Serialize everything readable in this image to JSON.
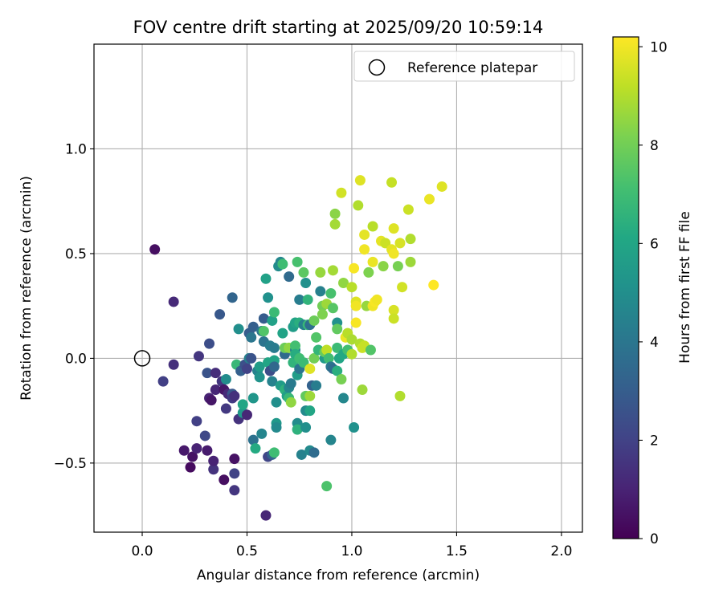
{
  "chart_data": {
    "type": "scatter",
    "title": "FOV centre drift starting at 2025/09/20 10:59:14",
    "xlabel": "Angular distance from reference (arcmin)",
    "ylabel": "Rotation from reference (arcmin)",
    "xlim": [
      -0.23,
      2.1
    ],
    "ylim": [
      -0.83,
      1.5
    ],
    "x_ticks": [
      0.0,
      0.5,
      1.0,
      1.5,
      2.0
    ],
    "x_tick_labels": [
      "0.0",
      "0.5",
      "1.0",
      "1.5",
      "2.0"
    ],
    "y_ticks": [
      -0.5,
      0.0,
      0.5,
      1.0
    ],
    "y_tick_labels": [
      "−0.5",
      "0.0",
      "0.5",
      "1.0"
    ],
    "grid": true,
    "legend": {
      "location": "upper-right",
      "entries": [
        "Reference platepar"
      ]
    },
    "reference_point": {
      "x": 0.0,
      "y": 0.0,
      "label": "Reference platepar"
    },
    "colorbar": {
      "label": "Hours from first FF file",
      "colormap": "viridis",
      "range": [
        0,
        10.2
      ],
      "ticks": [
        0,
        2,
        4,
        6,
        8,
        10
      ],
      "tick_labels": [
        "0",
        "2",
        "4",
        "6",
        "8",
        "10"
      ]
    },
    "points": [
      {
        "x": 0.06,
        "y": 0.52,
        "c": 0.4
      },
      {
        "x": 0.15,
        "y": 0.27,
        "c": 1.2
      },
      {
        "x": 0.15,
        "y": -0.03,
        "c": 1.4
      },
      {
        "x": 0.1,
        "y": -0.11,
        "c": 1.9
      },
      {
        "x": 0.2,
        "y": -0.44,
        "c": 0.7
      },
      {
        "x": 0.23,
        "y": -0.52,
        "c": 0.3
      },
      {
        "x": 0.24,
        "y": -0.47,
        "c": 0.5
      },
      {
        "x": 0.26,
        "y": -0.43,
        "c": 1.0
      },
      {
        "x": 0.26,
        "y": -0.3,
        "c": 1.9
      },
      {
        "x": 0.27,
        "y": 0.01,
        "c": 1.6
      },
      {
        "x": 0.3,
        "y": -0.37,
        "c": 2.2
      },
      {
        "x": 0.31,
        "y": -0.44,
        "c": 0.8
      },
      {
        "x": 0.31,
        "y": -0.07,
        "c": 2.6
      },
      {
        "x": 0.32,
        "y": 0.07,
        "c": 2.4
      },
      {
        "x": 0.32,
        "y": -0.19,
        "c": 1.0
      },
      {
        "x": 0.33,
        "y": -0.2,
        "c": 0.6
      },
      {
        "x": 0.35,
        "y": -0.07,
        "c": 1.3
      },
      {
        "x": 0.35,
        "y": -0.15,
        "c": 1.1
      },
      {
        "x": 0.34,
        "y": -0.53,
        "c": 1.5
      },
      {
        "x": 0.34,
        "y": -0.49,
        "c": 1.0
      },
      {
        "x": 0.37,
        "y": 0.21,
        "c": 2.8
      },
      {
        "x": 0.38,
        "y": -0.11,
        "c": 1.6
      },
      {
        "x": 0.39,
        "y": -0.15,
        "c": 0.6
      },
      {
        "x": 0.39,
        "y": -0.58,
        "c": 0.4
      },
      {
        "x": 0.4,
        "y": -0.24,
        "c": 1.7
      },
      {
        "x": 0.4,
        "y": -0.1,
        "c": 4.9
      },
      {
        "x": 0.41,
        "y": -0.17,
        "c": 1.2
      },
      {
        "x": 0.43,
        "y": -0.17,
        "c": 2.8
      },
      {
        "x": 0.43,
        "y": 0.29,
        "c": 3.3
      },
      {
        "x": 0.43,
        "y": -0.19,
        "c": 1.8
      },
      {
        "x": 0.44,
        "y": -0.48,
        "c": 0.5
      },
      {
        "x": 0.44,
        "y": -0.55,
        "c": 2.0
      },
      {
        "x": 0.44,
        "y": -0.63,
        "c": 1.6
      },
      {
        "x": 0.44,
        "y": -0.18,
        "c": 1.4
      },
      {
        "x": 0.45,
        "y": -0.03,
        "c": 6.8
      },
      {
        "x": 0.46,
        "y": -0.29,
        "c": 1.5
      },
      {
        "x": 0.46,
        "y": 0.14,
        "c": 5.0
      },
      {
        "x": 0.47,
        "y": -0.06,
        "c": 3.1
      },
      {
        "x": 0.48,
        "y": -0.26,
        "c": 5.4
      },
      {
        "x": 0.48,
        "y": -0.22,
        "c": 6.0
      },
      {
        "x": 0.49,
        "y": -0.03,
        "c": 2.5
      },
      {
        "x": 0.5,
        "y": -0.27,
        "c": 1.1
      },
      {
        "x": 0.5,
        "y": -0.05,
        "c": 2.0
      },
      {
        "x": 0.51,
        "y": 0.0,
        "c": 4.4
      },
      {
        "x": 0.51,
        "y": 0.12,
        "c": 3.0
      },
      {
        "x": 0.52,
        "y": 0.0,
        "c": 2.6
      },
      {
        "x": 0.53,
        "y": 0.15,
        "c": 3.1
      },
      {
        "x": 0.52,
        "y": 0.1,
        "c": 4.0
      },
      {
        "x": 0.53,
        "y": -0.39,
        "c": 3.8
      },
      {
        "x": 0.53,
        "y": -0.19,
        "c": 5.3
      },
      {
        "x": 0.54,
        "y": -0.43,
        "c": 6.2
      },
      {
        "x": 0.55,
        "y": -0.06,
        "c": 4.5
      },
      {
        "x": 0.56,
        "y": -0.09,
        "c": 5.2
      },
      {
        "x": 0.56,
        "y": -0.04,
        "c": 5.6
      },
      {
        "x": 0.57,
        "y": 0.13,
        "c": 4.1
      },
      {
        "x": 0.57,
        "y": -0.36,
        "c": 4.6
      },
      {
        "x": 0.58,
        "y": 0.19,
        "c": 3.0
      },
      {
        "x": 0.58,
        "y": 0.08,
        "c": 3.9
      },
      {
        "x": 0.58,
        "y": 0.13,
        "c": 7.4
      },
      {
        "x": 0.59,
        "y": -0.75,
        "c": 1.1
      },
      {
        "x": 0.59,
        "y": 0.38,
        "c": 5.8
      },
      {
        "x": 0.6,
        "y": -0.02,
        "c": 6.0
      },
      {
        "x": 0.6,
        "y": -0.47,
        "c": 2.1
      },
      {
        "x": 0.6,
        "y": 0.29,
        "c": 5.1
      },
      {
        "x": 0.61,
        "y": 0.06,
        "c": 4.3
      },
      {
        "x": 0.61,
        "y": -0.06,
        "c": 2.4
      },
      {
        "x": 0.62,
        "y": 0.18,
        "c": 5.8
      },
      {
        "x": 0.62,
        "y": -0.46,
        "c": 3.2
      },
      {
        "x": 0.62,
        "y": -0.11,
        "c": 4.5
      },
      {
        "x": 0.63,
        "y": -0.45,
        "c": 7.0
      },
      {
        "x": 0.63,
        "y": 0.05,
        "c": 4.2
      },
      {
        "x": 0.63,
        "y": 0.22,
        "c": 6.9
      },
      {
        "x": 0.63,
        "y": -0.01,
        "c": 5.9
      },
      {
        "x": 0.63,
        "y": -0.04,
        "c": 3.4
      },
      {
        "x": 0.64,
        "y": -0.31,
        "c": 5.4
      },
      {
        "x": 0.64,
        "y": -0.21,
        "c": 5.0
      },
      {
        "x": 0.64,
        "y": -0.33,
        "c": 4.8
      },
      {
        "x": 0.65,
        "y": 0.44,
        "c": 4.9
      },
      {
        "x": 0.66,
        "y": 0.46,
        "c": 4.7
      },
      {
        "x": 0.66,
        "y": -0.13,
        "c": 5.6
      },
      {
        "x": 0.67,
        "y": 0.45,
        "c": 7.0
      },
      {
        "x": 0.67,
        "y": 0.12,
        "c": 5.9
      },
      {
        "x": 0.68,
        "y": 0.02,
        "c": 3.5
      },
      {
        "x": 0.68,
        "y": 0.05,
        "c": 7.9
      },
      {
        "x": 0.68,
        "y": -0.15,
        "c": 6.5
      },
      {
        "x": 0.69,
        "y": -0.18,
        "c": 5.7
      },
      {
        "x": 0.7,
        "y": 0.05,
        "c": 8.5
      },
      {
        "x": 0.7,
        "y": -0.14,
        "c": 4.6
      },
      {
        "x": 0.7,
        "y": -0.19,
        "c": 6.8
      },
      {
        "x": 0.7,
        "y": 0.39,
        "c": 3.5
      },
      {
        "x": 0.71,
        "y": -0.21,
        "c": 8.5
      },
      {
        "x": 0.71,
        "y": -0.12,
        "c": 4.2
      },
      {
        "x": 0.72,
        "y": 0.15,
        "c": 5.6
      },
      {
        "x": 0.72,
        "y": -0.02,
        "c": 6.6
      },
      {
        "x": 0.73,
        "y": 0.17,
        "c": 5.9
      },
      {
        "x": 0.73,
        "y": 0.04,
        "c": 4.6
      },
      {
        "x": 0.73,
        "y": 0.06,
        "c": 7.1
      },
      {
        "x": 0.73,
        "y": 0.02,
        "c": 6.3
      },
      {
        "x": 0.74,
        "y": -0.31,
        "c": 4.9
      },
      {
        "x": 0.74,
        "y": -0.34,
        "c": 6.5
      },
      {
        "x": 0.74,
        "y": -0.08,
        "c": 5.6
      },
      {
        "x": 0.74,
        "y": 0.46,
        "c": 7.2
      },
      {
        "x": 0.75,
        "y": -0.05,
        "c": 3.9
      },
      {
        "x": 0.75,
        "y": 0.0,
        "c": 7.0
      },
      {
        "x": 0.75,
        "y": 0.28,
        "c": 4.3
      },
      {
        "x": 0.75,
        "y": 0.17,
        "c": 6.4
      },
      {
        "x": 0.76,
        "y": -0.46,
        "c": 4.5
      },
      {
        "x": 0.77,
        "y": 0.16,
        "c": 4.4
      },
      {
        "x": 0.77,
        "y": 0.41,
        "c": 7.6
      },
      {
        "x": 0.77,
        "y": -0.02,
        "c": 6.9
      },
      {
        "x": 0.78,
        "y": -0.18,
        "c": 7.7
      },
      {
        "x": 0.78,
        "y": -0.25,
        "c": 4.8
      },
      {
        "x": 0.78,
        "y": -0.33,
        "c": 5.0
      },
      {
        "x": 0.78,
        "y": 0.36,
        "c": 5.1
      },
      {
        "x": 0.79,
        "y": 0.28,
        "c": 6.6
      },
      {
        "x": 0.79,
        "y": 0.16,
        "c": 6.8
      },
      {
        "x": 0.8,
        "y": -0.44,
        "c": 4.8
      },
      {
        "x": 0.8,
        "y": -0.18,
        "c": 8.7
      },
      {
        "x": 0.8,
        "y": -0.05,
        "c": 9.7
      },
      {
        "x": 0.8,
        "y": -0.25,
        "c": 6.0
      },
      {
        "x": 0.8,
        "y": 0.16,
        "c": 3.7
      },
      {
        "x": 0.81,
        "y": -0.13,
        "c": 3.2
      },
      {
        "x": 0.82,
        "y": -0.45,
        "c": 3.6
      },
      {
        "x": 0.82,
        "y": 0.18,
        "c": 7.9
      },
      {
        "x": 0.82,
        "y": 0.0,
        "c": 8.0
      },
      {
        "x": 0.83,
        "y": -0.13,
        "c": 4.3
      },
      {
        "x": 0.83,
        "y": 0.1,
        "c": 7.4
      },
      {
        "x": 0.84,
        "y": 0.04,
        "c": 6.7
      },
      {
        "x": 0.85,
        "y": 0.41,
        "c": 8.6
      },
      {
        "x": 0.85,
        "y": 0.32,
        "c": 4.4
      },
      {
        "x": 0.86,
        "y": 0.25,
        "c": 8.0
      },
      {
        "x": 0.86,
        "y": 0.21,
        "c": 8.2
      },
      {
        "x": 0.87,
        "y": 0.0,
        "c": 5.5
      },
      {
        "x": 0.87,
        "y": 0.03,
        "c": 7.8
      },
      {
        "x": 0.88,
        "y": 0.04,
        "c": 9.2
      },
      {
        "x": 0.88,
        "y": -0.61,
        "c": 7.3
      },
      {
        "x": 0.88,
        "y": 0.26,
        "c": 8.7
      },
      {
        "x": 0.89,
        "y": 0.0,
        "c": 7.0
      },
      {
        "x": 0.9,
        "y": 0.31,
        "c": 7.2
      },
      {
        "x": 0.9,
        "y": -0.04,
        "c": 4.0
      },
      {
        "x": 0.91,
        "y": 0.24,
        "c": 7.5
      },
      {
        "x": 0.91,
        "y": -0.05,
        "c": 3.6
      },
      {
        "x": 0.9,
        "y": -0.39,
        "c": 4.6
      },
      {
        "x": 0.91,
        "y": 0.42,
        "c": 8.8
      },
      {
        "x": 0.92,
        "y": 0.64,
        "c": 8.8
      },
      {
        "x": 0.92,
        "y": 0.69,
        "c": 8.4
      },
      {
        "x": 0.93,
        "y": -0.06,
        "c": 6.4
      },
      {
        "x": 0.93,
        "y": 0.05,
        "c": 6.9
      },
      {
        "x": 0.93,
        "y": 0.17,
        "c": 5.1
      },
      {
        "x": 0.93,
        "y": 0.14,
        "c": 7.7
      },
      {
        "x": 0.94,
        "y": 0.0,
        "c": 6.0
      },
      {
        "x": 0.95,
        "y": 0.79,
        "c": 9.5
      },
      {
        "x": 0.95,
        "y": -0.1,
        "c": 8.1
      },
      {
        "x": 0.96,
        "y": 0.02,
        "c": 6.1
      },
      {
        "x": 0.96,
        "y": -0.19,
        "c": 4.7
      },
      {
        "x": 0.96,
        "y": 0.36,
        "c": 8.5
      },
      {
        "x": 0.97,
        "y": 0.1,
        "c": 9.9
      },
      {
        "x": 0.98,
        "y": 0.04,
        "c": 7.1
      },
      {
        "x": 0.98,
        "y": 0.12,
        "c": 9.1
      },
      {
        "x": 1.0,
        "y": 0.34,
        "c": 9.1
      },
      {
        "x": 1.0,
        "y": 0.09,
        "c": 8.9
      },
      {
        "x": 1.0,
        "y": 0.02,
        "c": 9.0
      },
      {
        "x": 1.01,
        "y": 0.43,
        "c": 10.1
      },
      {
        "x": 1.01,
        "y": -0.33,
        "c": 5.1
      },
      {
        "x": 1.02,
        "y": 0.27,
        "c": 9.7
      },
      {
        "x": 1.02,
        "y": 0.25,
        "c": 10.0
      },
      {
        "x": 1.02,
        "y": 0.17,
        "c": 10.1
      },
      {
        "x": 1.03,
        "y": 0.73,
        "c": 9.0
      },
      {
        "x": 1.04,
        "y": 0.85,
        "c": 9.7
      },
      {
        "x": 1.04,
        "y": 0.07,
        "c": 9.0
      },
      {
        "x": 1.05,
        "y": -0.15,
        "c": 8.7
      },
      {
        "x": 1.05,
        "y": 0.05,
        "c": 9.4
      },
      {
        "x": 1.06,
        "y": 0.59,
        "c": 9.8
      },
      {
        "x": 1.06,
        "y": 0.52,
        "c": 10.0
      },
      {
        "x": 1.06,
        "y": 0.06,
        "c": 9.3
      },
      {
        "x": 1.07,
        "y": 0.25,
        "c": 8.6
      },
      {
        "x": 1.08,
        "y": 0.41,
        "c": 8.2
      },
      {
        "x": 1.09,
        "y": 0.04,
        "c": 7.4
      },
      {
        "x": 1.1,
        "y": 0.63,
        "c": 9.1
      },
      {
        "x": 1.1,
        "y": 0.46,
        "c": 9.9
      },
      {
        "x": 1.1,
        "y": 0.25,
        "c": 10.0
      },
      {
        "x": 1.11,
        "y": 0.27,
        "c": 10.1
      },
      {
        "x": 1.12,
        "y": 0.28,
        "c": 10.0
      },
      {
        "x": 1.14,
        "y": 0.56,
        "c": 9.8
      },
      {
        "x": 1.15,
        "y": 0.44,
        "c": 8.4
      },
      {
        "x": 1.16,
        "y": 0.55,
        "c": 9.4
      },
      {
        "x": 1.19,
        "y": 0.84,
        "c": 9.3
      },
      {
        "x": 1.19,
        "y": 0.52,
        "c": 9.8
      },
      {
        "x": 1.2,
        "y": 0.5,
        "c": 10.0
      },
      {
        "x": 1.2,
        "y": 0.62,
        "c": 9.7
      },
      {
        "x": 1.2,
        "y": 0.23,
        "c": 9.6
      },
      {
        "x": 1.2,
        "y": 0.19,
        "c": 9.4
      },
      {
        "x": 1.22,
        "y": 0.44,
        "c": 8.1
      },
      {
        "x": 1.23,
        "y": -0.18,
        "c": 9.0
      },
      {
        "x": 1.23,
        "y": 0.55,
        "c": 9.6
      },
      {
        "x": 1.24,
        "y": 0.34,
        "c": 9.5
      },
      {
        "x": 1.27,
        "y": 0.71,
        "c": 9.4
      },
      {
        "x": 1.28,
        "y": 0.46,
        "c": 8.7
      },
      {
        "x": 1.28,
        "y": 0.57,
        "c": 9.0
      },
      {
        "x": 1.37,
        "y": 0.76,
        "c": 9.9
      },
      {
        "x": 1.39,
        "y": 0.35,
        "c": 10.2
      },
      {
        "x": 1.43,
        "y": 0.82,
        "c": 9.7
      }
    ]
  }
}
